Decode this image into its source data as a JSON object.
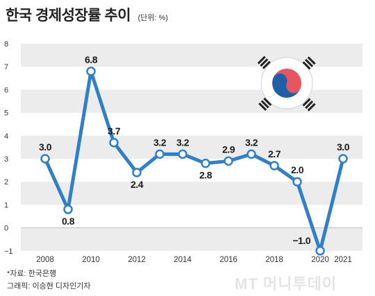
{
  "header": {
    "title": "한국 경제성장률 추이",
    "unit": "(단위: %)"
  },
  "footer": {
    "source": "*자료: 한국은행",
    "credit": "그래픽: 이승현 디자인기자",
    "watermark": "MT 머니투데이"
  },
  "colors": {
    "line": "#2f7fc9",
    "band": "#ececec",
    "marker_fill": "#ffffff",
    "flag_red": "#e8555f",
    "flag_blue": "#1f5fa8"
  },
  "flag_icon": "taegukgi-icon",
  "chart_data": {
    "type": "line",
    "x": [
      2008,
      2009,
      2010,
      2011,
      2012,
      2013,
      2014,
      2015,
      2016,
      2017,
      2018,
      2019,
      2020,
      2021
    ],
    "series": [
      {
        "values": [
          3.0,
          0.8,
          6.8,
          3.7,
          2.4,
          3.2,
          3.2,
          2.8,
          2.9,
          3.2,
          2.7,
          2.0,
          -1.0,
          3.0
        ]
      }
    ],
    "data_labels": [
      "3.0",
      "0.8",
      "6.8",
      "3.7",
      "2.4",
      "3.2",
      "3.2",
      "2.8",
      "2.9",
      "3.2",
      "2.7",
      "2.0",
      "−1.0",
      "3.0"
    ],
    "xtick_labels": [
      "2008",
      "2010",
      "2012",
      "2014",
      "2016",
      "2018",
      "2020",
      "2021"
    ],
    "ytick_labels": [
      "−1",
      "0",
      "1",
      "2",
      "3",
      "4",
      "5",
      "6",
      "7",
      "8"
    ],
    "ylim": [
      -1,
      8
    ],
    "xlabel": "",
    "ylabel": "",
    "grid": "horizontal bands",
    "legend": "none"
  }
}
